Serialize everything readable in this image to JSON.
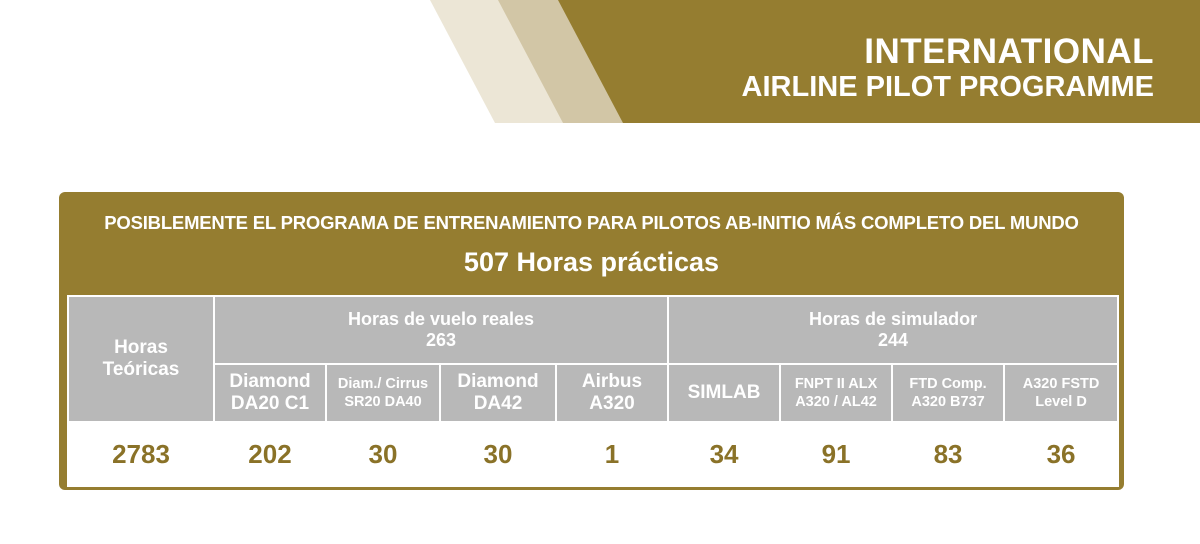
{
  "banner": {
    "line1": "INTERNATIONAL",
    "line2": "AIRLINE PILOT PROGRAMME",
    "colors": {
      "gold": "#957d30",
      "stripe_light": "#ece6d6",
      "stripe_mid": "#d2c6a6"
    }
  },
  "panel": {
    "headline": "POSIBLEMENTE EL PROGRAMA DE ENTRENAMIENTO PARA PILOTOS AB-INITIO MÁS COMPLETO DEL MUNDO",
    "subheadline": "507 Horas prácticas"
  },
  "table": {
    "theory": {
      "label_line1": "Horas",
      "label_line2": "Teóricas",
      "value": "2783"
    },
    "flight_group": {
      "label": "Horas de vuelo reales",
      "total": "263"
    },
    "sim_group": {
      "label": "Horas de simulador",
      "total": "244"
    },
    "columns": [
      {
        "line1": "Diamond",
        "line2": "DA20 C1",
        "value": "202"
      },
      {
        "line1": "Diam./ Cirrus",
        "line2": "SR20 DA40",
        "value": "30"
      },
      {
        "line1": "Diamond",
        "line2": "DA42",
        "value": "30"
      },
      {
        "line1": "Airbus",
        "line2": "A320",
        "value": "1"
      },
      {
        "line1": "SIMLAB",
        "line2": "",
        "value": "34"
      },
      {
        "line1": "FNPT II ALX",
        "line2": "A320 / AL42",
        "value": "91"
      },
      {
        "line1": "FTD Comp.",
        "line2": "A320 B737",
        "value": "83"
      },
      {
        "line1": "A320 FSTD",
        "line2": "Level D",
        "value": "36"
      }
    ]
  }
}
